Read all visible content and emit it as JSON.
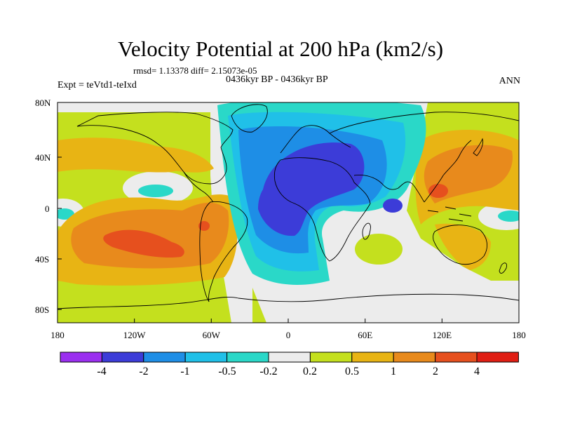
{
  "title": "Velocity Potential at 200 hPa (km2/s)",
  "stats": "rmsd= 1.13378 diff= 2.15073e-05",
  "period": "0436kyr BP - 0436kyr BP",
  "experiment": "Expt = teVtd1-teIxd",
  "season": "ANN",
  "lat_labels": [
    "80N",
    "40N",
    "0",
    "40S",
    "80S"
  ],
  "lon_labels": [
    "180",
    "120W",
    "60W",
    "0",
    "60E",
    "120E",
    "180"
  ],
  "colorbar": {
    "labels": [
      "-4",
      "-2",
      "-1",
      "-0.5",
      "-0.2",
      "0.2",
      "0.5",
      "1",
      "2",
      "4"
    ],
    "colors": [
      "#9b2ff0",
      "#3c3cd8",
      "#1e8ee6",
      "#20c0e8",
      "#2ad8c8",
      "#ececec",
      "#c4e01e",
      "#e8b414",
      "#e88a1c",
      "#e6501e",
      "#e01e14"
    ]
  },
  "palette": {
    "background": "#ececec",
    "deep_blue": "#3c3cd8",
    "blue": "#1e8ee6",
    "light_blue": "#20c0e8",
    "cyan": "#2ad8c8",
    "lime": "#c4e01e",
    "gold": "#e8b414",
    "orange": "#e88a1c",
    "red_orange": "#e6501e"
  }
}
